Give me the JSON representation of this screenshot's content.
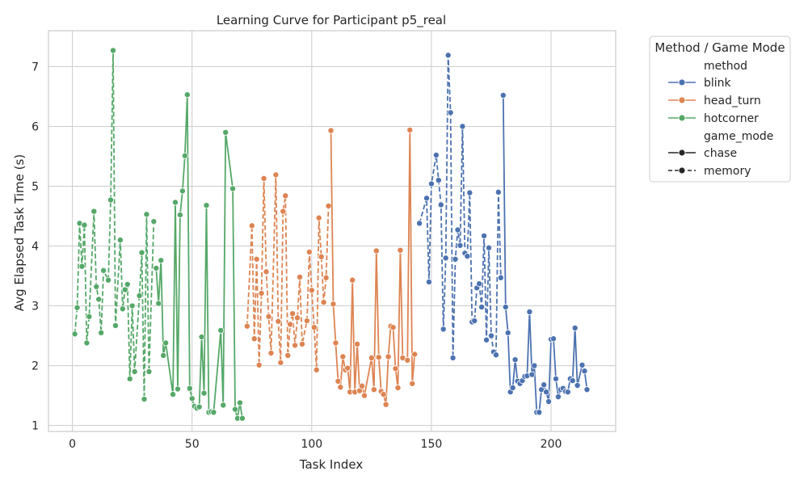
{
  "chart_data": {
    "type": "line",
    "title": "Learning Curve for Participant p5_real",
    "xlabel": "Task Index",
    "ylabel": "Avg Elapsed Task Time (s)",
    "xlim": [
      -10,
      227
    ],
    "ylim": [
      0.9,
      7.6
    ],
    "xticks": [
      0,
      50,
      100,
      150,
      200
    ],
    "yticks": [
      1,
      2,
      3,
      4,
      5,
      6,
      7
    ],
    "grid": true,
    "legend": {
      "title": "Method / Game Mode",
      "placement": "outside-top-right",
      "method_header": "method",
      "game_mode_header": "game_mode",
      "methods": [
        {
          "label": "blink",
          "color": "#4c72b0"
        },
        {
          "label": "head_turn",
          "color": "#dd8452"
        },
        {
          "label": "hotcorner",
          "color": "#55a868"
        }
      ],
      "game_modes": [
        {
          "label": "chase",
          "style": "solid"
        },
        {
          "label": "memory",
          "style": "dashed"
        }
      ]
    },
    "series": [
      {
        "method": "hotcorner",
        "game_mode": "memory",
        "color": "#55a868",
        "dashed": true,
        "points": [
          [
            1,
            2.53
          ],
          [
            2,
            2.97
          ],
          [
            3,
            4.38
          ],
          [
            4,
            3.66
          ],
          [
            5,
            4.35
          ],
          [
            6,
            2.38
          ],
          [
            7,
            2.82
          ],
          [
            9,
            4.58
          ],
          [
            10,
            3.32
          ],
          [
            11,
            3.11
          ],
          [
            12,
            2.55
          ],
          [
            13,
            3.59
          ],
          [
            15,
            3.43
          ],
          [
            16,
            4.77
          ],
          [
            17,
            7.27
          ],
          [
            18,
            2.67
          ],
          [
            20,
            4.1
          ],
          [
            21,
            2.95
          ],
          [
            22,
            3.27
          ],
          [
            23,
            3.36
          ],
          [
            24,
            1.78
          ],
          [
            25,
            3.0
          ],
          [
            26,
            1.9
          ],
          [
            28,
            3.17
          ],
          [
            29,
            3.89
          ],
          [
            30,
            1.44
          ],
          [
            31,
            4.53
          ],
          [
            32,
            1.9
          ],
          [
            34,
            4.41
          ]
        ]
      },
      {
        "method": "hotcorner",
        "game_mode": "chase",
        "color": "#55a868",
        "dashed": false,
        "points": [
          [
            35,
            3.63
          ],
          [
            36,
            3.04
          ],
          [
            37,
            3.76
          ],
          [
            38,
            2.17
          ],
          [
            39,
            2.38
          ],
          [
            42,
            1.52
          ],
          [
            43,
            4.73
          ],
          [
            44,
            1.61
          ],
          [
            45,
            4.52
          ],
          [
            46,
            4.92
          ],
          [
            47,
            5.51
          ],
          [
            48,
            6.53
          ],
          [
            49,
            1.62
          ],
          [
            50,
            1.45
          ],
          [
            51,
            1.32
          ],
          [
            52,
            1.29
          ],
          [
            53,
            1.31
          ],
          [
            54,
            2.48
          ],
          [
            55,
            1.54
          ],
          [
            56,
            4.68
          ],
          [
            57,
            1.22
          ],
          [
            58,
            1.23
          ],
          [
            59,
            1.22
          ],
          [
            62,
            2.59
          ],
          [
            63,
            1.34
          ],
          [
            64,
            5.9
          ],
          [
            67,
            4.96
          ],
          [
            68,
            1.27
          ],
          [
            69,
            1.12
          ],
          [
            70,
            1.38
          ],
          [
            71,
            1.12
          ]
        ]
      },
      {
        "method": "head_turn",
        "game_mode": "memory",
        "color": "#dd8452",
        "dashed": true,
        "points": [
          [
            73,
            2.66
          ],
          [
            75,
            4.34
          ],
          [
            76,
            2.45
          ],
          [
            77,
            3.78
          ],
          [
            78,
            2.01
          ],
          [
            79,
            3.21
          ],
          [
            80,
            5.13
          ],
          [
            81,
            3.57
          ],
          [
            82,
            2.82
          ],
          [
            83,
            2.21
          ],
          [
            85,
            5.19
          ],
          [
            86,
            2.74
          ],
          [
            87,
            2.05
          ],
          [
            88,
            4.58
          ],
          [
            89,
            4.84
          ],
          [
            90,
            2.17
          ],
          [
            91,
            2.69
          ],
          [
            92,
            2.87
          ],
          [
            93,
            2.34
          ],
          [
            94,
            2.8
          ],
          [
            95,
            3.48
          ],
          [
            96,
            2.36
          ],
          [
            98,
            2.75
          ],
          [
            99,
            3.9
          ],
          [
            100,
            3.26
          ],
          [
            101,
            2.64
          ],
          [
            102,
            1.93
          ],
          [
            103,
            4.47
          ],
          [
            104,
            3.82
          ],
          [
            105,
            3.06
          ],
          [
            106,
            3.47
          ],
          [
            107,
            4.67
          ]
        ]
      },
      {
        "method": "head_turn",
        "game_mode": "chase",
        "color": "#dd8452",
        "dashed": false,
        "points": [
          [
            108,
            5.93
          ],
          [
            109,
            3.03
          ],
          [
            110,
            2.38
          ],
          [
            111,
            1.74
          ],
          [
            112,
            1.64
          ],
          [
            113,
            2.15
          ],
          [
            114,
            1.93
          ],
          [
            115,
            1.96
          ],
          [
            116,
            1.56
          ],
          [
            117,
            3.43
          ],
          [
            118,
            1.56
          ],
          [
            119,
            2.36
          ],
          [
            120,
            1.58
          ],
          [
            121,
            1.66
          ],
          [
            122,
            1.5
          ],
          [
            125,
            2.13
          ],
          [
            126,
            1.6
          ],
          [
            127,
            3.92
          ],
          [
            128,
            2.14
          ],
          [
            129,
            1.57
          ],
          [
            130,
            1.52
          ],
          [
            131,
            1.35
          ],
          [
            132,
            2.15
          ],
          [
            133,
            2.66
          ],
          [
            134,
            2.64
          ],
          [
            135,
            1.95
          ],
          [
            136,
            1.63
          ],
          [
            137,
            3.93
          ],
          [
            138,
            2.13
          ],
          [
            140,
            2.09
          ],
          [
            141,
            5.94
          ],
          [
            142,
            1.7
          ],
          [
            143,
            2.19
          ]
        ]
      },
      {
        "method": "blink",
        "game_mode": "memory",
        "color": "#4c72b0",
        "dashed": true,
        "points": [
          [
            145,
            4.38
          ],
          [
            148,
            4.8
          ],
          [
            149,
            3.4
          ],
          [
            150,
            5.04
          ],
          [
            152,
            5.52
          ],
          [
            153,
            5.1
          ],
          [
            154,
            4.69
          ],
          [
            155,
            2.61
          ],
          [
            156,
            3.8
          ],
          [
            157,
            7.19
          ],
          [
            158,
            6.23
          ],
          [
            159,
            2.13
          ],
          [
            160,
            3.78
          ],
          [
            161,
            4.27
          ],
          [
            162,
            4.01
          ],
          [
            163,
            6.0
          ],
          [
            164,
            3.88
          ],
          [
            165,
            3.83
          ],
          [
            166,
            4.89
          ],
          [
            167,
            2.73
          ],
          [
            168,
            2.75
          ],
          [
            169,
            3.3
          ],
          [
            170,
            3.37
          ],
          [
            171,
            2.98
          ],
          [
            172,
            4.17
          ],
          [
            173,
            2.43
          ],
          [
            174,
            3.97
          ],
          [
            175,
            2.5
          ],
          [
            176,
            2.23
          ],
          [
            177,
            2.18
          ],
          [
            178,
            4.9
          ],
          [
            179,
            3.47
          ]
        ]
      },
      {
        "method": "blink",
        "game_mode": "chase",
        "color": "#4c72b0",
        "dashed": false,
        "points": [
          [
            180,
            6.52
          ],
          [
            181,
            2.98
          ],
          [
            182,
            2.55
          ],
          [
            183,
            1.56
          ],
          [
            184,
            1.63
          ],
          [
            185,
            2.1
          ],
          [
            186,
            1.74
          ],
          [
            187,
            1.7
          ],
          [
            188,
            1.75
          ],
          [
            189,
            1.82
          ],
          [
            190,
            1.83
          ],
          [
            191,
            2.9
          ],
          [
            192,
            1.85
          ],
          [
            193,
            2.0
          ],
          [
            194,
            1.22
          ],
          [
            195,
            1.22
          ],
          [
            196,
            1.6
          ],
          [
            197,
            1.68
          ],
          [
            198,
            1.56
          ],
          [
            199,
            1.4
          ],
          [
            200,
            2.44
          ],
          [
            201,
            2.45
          ],
          [
            202,
            1.78
          ],
          [
            203,
            1.48
          ],
          [
            204,
            1.6
          ],
          [
            205,
            1.62
          ],
          [
            206,
            1.57
          ],
          [
            207,
            1.56
          ],
          [
            208,
            1.78
          ],
          [
            209,
            1.75
          ],
          [
            210,
            2.63
          ],
          [
            211,
            1.67
          ],
          [
            213,
            2.01
          ],
          [
            214,
            1.91
          ],
          [
            215,
            1.6
          ]
        ]
      }
    ]
  }
}
